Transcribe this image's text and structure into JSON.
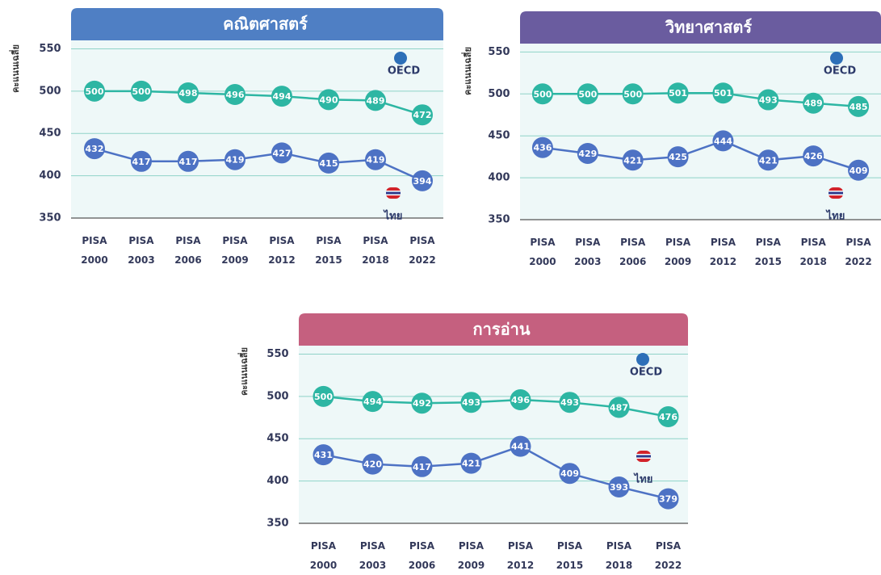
{
  "chart_data": [
    {
      "type": "line",
      "title": "คณิตศาสตร์",
      "y_label": "คะแนนเฉลี่ย",
      "categories": [
        "PISA 2000",
        "PISA 2003",
        "PISA 2006",
        "PISA 2009",
        "PISA 2012",
        "PISA 2015",
        "PISA 2018",
        "PISA 2022"
      ],
      "series": [
        {
          "name": "OECD",
          "color": "#2db6a3",
          "values": [
            500,
            500,
            498,
            496,
            494,
            490,
            489,
            472
          ]
        },
        {
          "name": "ไทย",
          "color": "#4d72c4",
          "values": [
            432,
            417,
            417,
            419,
            427,
            415,
            419,
            394
          ]
        }
      ],
      "ylim": [
        350,
        560
      ],
      "yticks": [
        350,
        400,
        450,
        500,
        550
      ],
      "grid": true,
      "header_color": "#4f7fc4"
    },
    {
      "type": "line",
      "title": "วิทยาศาสตร์",
      "y_label": "คะแนนเฉลี่ย",
      "categories": [
        "PISA 2000",
        "PISA 2003",
        "PISA 2006",
        "PISA 2009",
        "PISA 2012",
        "PISA 2015",
        "PISA 2018",
        "PISA 2022"
      ],
      "series": [
        {
          "name": "OECD",
          "color": "#2db6a3",
          "values": [
            500,
            500,
            500,
            501,
            501,
            493,
            489,
            485
          ]
        },
        {
          "name": "ไทย",
          "color": "#4d72c4",
          "values": [
            436,
            429,
            421,
            425,
            444,
            421,
            426,
            409
          ]
        }
      ],
      "ylim": [
        350,
        560
      ],
      "yticks": [
        350,
        400,
        450,
        500,
        550
      ],
      "grid": true,
      "header_color": "#6a5c9f"
    },
    {
      "type": "line",
      "title": "การอ่าน",
      "y_label": "คะแนนเฉลี่ย",
      "categories": [
        "PISA 2000",
        "PISA 2003",
        "PISA 2006",
        "PISA 2009",
        "PISA 2012",
        "PISA 2015",
        "PISA 2018",
        "PISA 2022"
      ],
      "series": [
        {
          "name": "OECD",
          "color": "#2db6a3",
          "values": [
            500,
            494,
            492,
            493,
            496,
            493,
            487,
            476
          ]
        },
        {
          "name": "ไทย",
          "color": "#4d72c4",
          "values": [
            431,
            420,
            417,
            421,
            441,
            409,
            393,
            379
          ]
        }
      ],
      "ylim": [
        350,
        560
      ],
      "yticks": [
        350,
        400,
        450,
        500,
        550
      ],
      "grid": true,
      "header_color": "#c5607f"
    }
  ]
}
